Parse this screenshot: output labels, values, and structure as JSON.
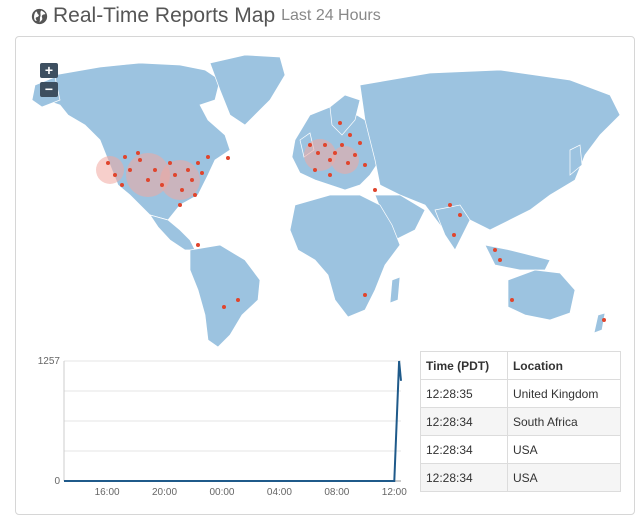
{
  "header": {
    "icon": "globe-icon",
    "title": "Real-Time Reports Map",
    "subtitle": "Last 24 Hours"
  },
  "map": {
    "zoom_in_label": "+",
    "zoom_out_label": "−",
    "land_color": "#9cc3e0",
    "marker_color": "#e0452d"
  },
  "chart_data": {
    "type": "line",
    "x": [
      "13:00",
      "14:00",
      "15:00",
      "16:00",
      "17:00",
      "18:00",
      "19:00",
      "20:00",
      "21:00",
      "22:00",
      "23:00",
      "00:00",
      "01:00",
      "02:00",
      "03:00",
      "04:00",
      "05:00",
      "06:00",
      "07:00",
      "08:00",
      "09:00",
      "10:00",
      "11:00",
      "12:00",
      "12:20",
      "12:28"
    ],
    "values": [
      0,
      0,
      0,
      0,
      0,
      0,
      0,
      0,
      0,
      0,
      0,
      0,
      0,
      0,
      0,
      0,
      0,
      0,
      0,
      0,
      0,
      0,
      0,
      0,
      1257,
      1050
    ],
    "x_ticks": [
      "16:00",
      "20:00",
      "00:00",
      "04:00",
      "08:00",
      "12:00"
    ],
    "y_ticks": [
      "0",
      "1257"
    ],
    "ylim": [
      0,
      1257
    ],
    "line_color": "#1f5a8a",
    "grid": true
  },
  "table": {
    "headers": [
      "Time (PDT)",
      "Location"
    ],
    "rows": [
      [
        "12:28:35",
        "United Kingdom"
      ],
      [
        "12:28:34",
        "South Africa"
      ],
      [
        "12:28:34",
        "USA"
      ],
      [
        "12:28:34",
        "USA"
      ]
    ]
  }
}
